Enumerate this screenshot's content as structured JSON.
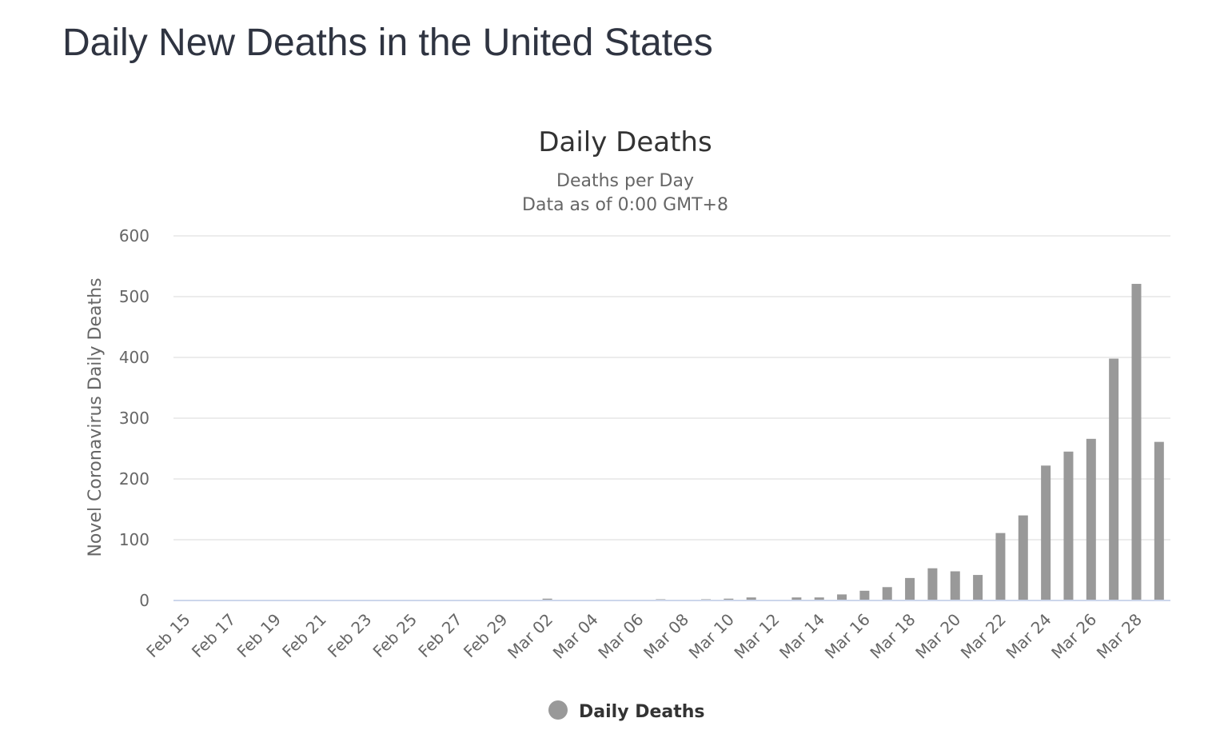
{
  "page": {
    "title": "Daily New Deaths in the United States"
  },
  "colors": {
    "bar": "#999999",
    "grid": "#e6e6e6",
    "baseline": "#ccd6eb"
  },
  "chart_data": {
    "type": "bar",
    "title": "Daily Deaths",
    "subtitle_lines": [
      "Deaths per Day",
      "Data as of 0:00 GMT+8"
    ],
    "xlabel": "",
    "ylabel": "Novel Coronavirus Daily Deaths",
    "ylim": [
      0,
      600
    ],
    "yticks": [
      0,
      100,
      200,
      300,
      400,
      500,
      600
    ],
    "grid": true,
    "legend_position": "bottom-center",
    "categories": [
      "Feb 15",
      "Feb 16",
      "Feb 17",
      "Feb 18",
      "Feb 19",
      "Feb 20",
      "Feb 21",
      "Feb 22",
      "Feb 23",
      "Feb 24",
      "Feb 25",
      "Feb 26",
      "Feb 27",
      "Feb 28",
      "Feb 29",
      "Mar 01",
      "Mar 02",
      "Mar 03",
      "Mar 04",
      "Mar 05",
      "Mar 06",
      "Mar 07",
      "Mar 08",
      "Mar 09",
      "Mar 10",
      "Mar 11",
      "Mar 12",
      "Mar 13",
      "Mar 14",
      "Mar 15",
      "Mar 16",
      "Mar 17",
      "Mar 18",
      "Mar 19",
      "Mar 20",
      "Mar 21",
      "Mar 22",
      "Mar 23",
      "Mar 24",
      "Mar 25",
      "Mar 26",
      "Mar 27",
      "Mar 28",
      "Mar 29"
    ],
    "tick_labels": [
      "Feb 15",
      "Feb 17",
      "Feb 19",
      "Feb 21",
      "Feb 23",
      "Feb 25",
      "Feb 27",
      "Feb 29",
      "Mar 02",
      "Mar 04",
      "Mar 06",
      "Mar 08",
      "Mar 10",
      "Mar 12",
      "Mar 14",
      "Mar 16",
      "Mar 18",
      "Mar 20",
      "Mar 22",
      "Mar 24",
      "Mar 26",
      "Mar 28"
    ],
    "series": [
      {
        "name": "Daily Deaths",
        "values": [
          0,
          0,
          0,
          0,
          0,
          0,
          0,
          0,
          0,
          0,
          0,
          0,
          0,
          0,
          1,
          0,
          3,
          0,
          0,
          0,
          0,
          2,
          0,
          2,
          3,
          5,
          0,
          5,
          5,
          10,
          16,
          22,
          37,
          53,
          48,
          42,
          111,
          140,
          222,
          245,
          266,
          398,
          521,
          261
        ]
      }
    ]
  }
}
